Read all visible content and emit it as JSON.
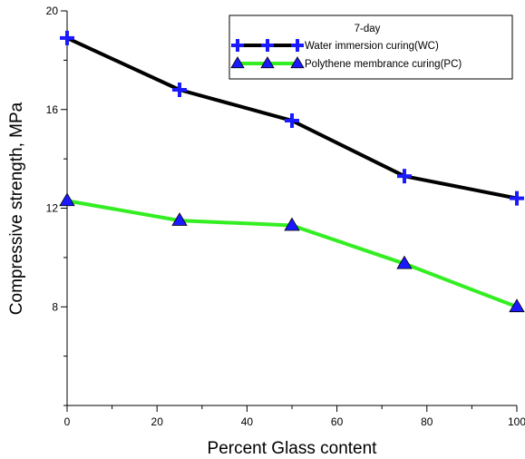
{
  "chart_data": {
    "type": "line",
    "title": "",
    "xlabel": "Percent Glass content",
    "ylabel": "Compressive strength, MPa",
    "xlim": [
      0,
      100
    ],
    "ylim": [
      4,
      20
    ],
    "xticks": [
      0,
      20,
      40,
      60,
      80,
      100
    ],
    "yticks": [
      8,
      12,
      16,
      20
    ],
    "grid": false,
    "legend": {
      "title": "7-day",
      "placement": "top-right"
    },
    "x": [
      0,
      25,
      50,
      75,
      100
    ],
    "series": [
      {
        "name": "Water immersion curing(WC)",
        "values": [
          18.9,
          16.8,
          15.55,
          13.3,
          12.4
        ],
        "line_color": "#000000",
        "marker": "plus",
        "marker_color": "#1a1aff"
      },
      {
        "name": "Polythene membrance curing(PC)",
        "values": [
          12.3,
          11.5,
          11.3,
          9.75,
          8.0
        ],
        "line_color": "#33ee22",
        "marker": "triangle",
        "marker_color": "#1a1aff"
      }
    ]
  }
}
